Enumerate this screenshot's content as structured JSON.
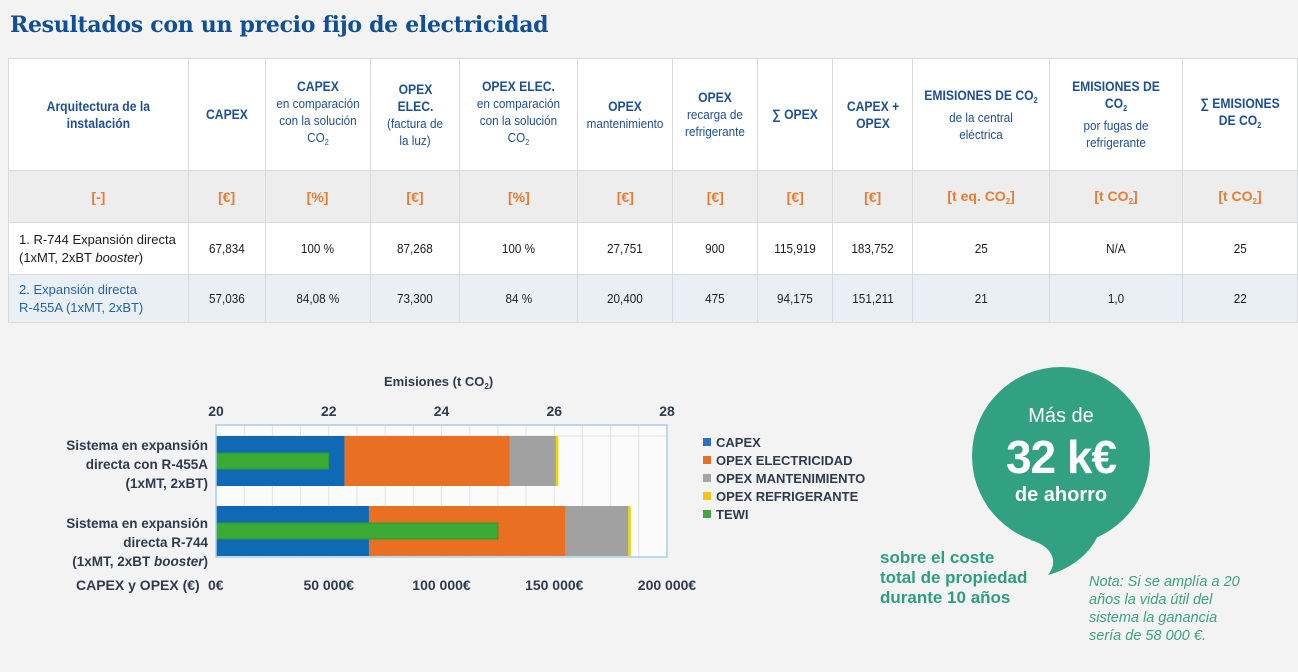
{
  "title": "Resultados con un precio fijo de electricidad",
  "table": {
    "headers": [
      {
        "main": "Arquitectura de la instalación",
        "sub": ""
      },
      {
        "main": "CAPEX",
        "sub": ""
      },
      {
        "main": "CAPEX",
        "sub": "en comparación con la solución",
        "sub2": "CO",
        "sub2_index": "2"
      },
      {
        "main": "OPEX ELEC.",
        "sub": "(factura de la luz)"
      },
      {
        "main": "OPEX ELEC.",
        "sub": "en comparación con la solución",
        "sub2": "CO",
        "sub2_index": "2"
      },
      {
        "main": "OPEX",
        "sub": "mantenimiento"
      },
      {
        "main": "OPEX",
        "sub": "recarga de refrigerante"
      },
      {
        "main": "∑ OPEX",
        "sub": ""
      },
      {
        "main": "CAPEX + OPEX",
        "sub": ""
      },
      {
        "main": "EMISIONES DE CO",
        "main_index": "2",
        "sub": "de la central eléctrica"
      },
      {
        "main": "EMISIONES DE CO",
        "main_index": "2",
        "sub": "por fugas de refrigerante"
      },
      {
        "main": "∑ EMISIONES DE CO",
        "main_index": "2",
        "sub": ""
      }
    ],
    "units": [
      "[-]",
      "[€]",
      "[%]",
      "[€]",
      "[%]",
      "[€]",
      "[€]",
      "[€]",
      "[€]",
      "[t eq. CO",
      "[t CO",
      "[t CO"
    ],
    "units_suffix": [
      "",
      "",
      "",
      "",
      "",
      "",
      "",
      "",
      "",
      "]",
      "]",
      "]"
    ],
    "units_index": [
      "",
      "",
      "",
      "",
      "",
      "",
      "",
      "",
      "",
      "2",
      "2",
      "2"
    ],
    "rows": [
      {
        "arch_line1": "1. R-744 Expansión directa",
        "arch_line2_a": "(1xMT, 2xBT ",
        "arch_line2_italic": "booster",
        "arch_line2_b": ")",
        "values": [
          "67,834",
          "100 %",
          "87,268",
          "100 %",
          "27,751",
          "900",
          "115,919",
          "183,752",
          "25",
          "N/A",
          "25"
        ]
      },
      {
        "arch_line1": "2. Expansión directa",
        "arch_line2_a": "R-455A (1xMT, 2xBT)",
        "arch_line2_italic": "",
        "arch_line2_b": "",
        "values": [
          "57,036",
          "84,08 %",
          "73,300",
          "84 %",
          "20,400",
          "475",
          "94,175",
          "151,211",
          "21",
          "1,0",
          "22"
        ]
      }
    ]
  },
  "chart_data": {
    "type": "bar",
    "orientation": "horizontal-stacked",
    "title": "Emisiones (t CO₂)",
    "title_text": "Emisiones (t CO",
    "title_index": "2",
    "title_close": ")",
    "categories": [
      {
        "lines": [
          "Sistema en expansión",
          "directa con R-455A",
          "(1xMT, 2xBT)"
        ],
        "italic_word": ""
      },
      {
        "lines": [
          "Sistema en expansión",
          "directa R-744",
          "(1xMT, 2xBT booster)"
        ],
        "italic_word": "booster"
      }
    ],
    "series": [
      {
        "name": "CAPEX",
        "color": "#0f69b4",
        "axis": "bottom",
        "values": [
          57036,
          67834
        ]
      },
      {
        "name": "OPEX ELECTRICIDAD",
        "color": "#e96f23",
        "axis": "bottom",
        "values": [
          73300,
          87268
        ]
      },
      {
        "name": "OPEX MANTENIMIENTO",
        "color": "#a1a1a1",
        "axis": "bottom",
        "values": [
          20400,
          27751
        ]
      },
      {
        "name": "OPEX REFRIGERANTE",
        "color": "#f2d500",
        "axis": "bottom",
        "values": [
          475,
          900
        ]
      },
      {
        "name": "TEWI",
        "color": "#3aaa35",
        "axis": "top",
        "values": [
          22,
          25
        ]
      }
    ],
    "legend_colors": [
      "#2f6fbf",
      "#e46f2a",
      "#a5a5a5",
      "#f5c215",
      "#43a843"
    ],
    "top_axis": {
      "label": "Emisiones (t CO₂)",
      "min": 20,
      "max": 28,
      "ticks": [
        "20",
        "22",
        "24",
        "26",
        "28"
      ]
    },
    "bottom_axis": {
      "label": "CAPEX y OPEX (€)",
      "min": 0,
      "max": 200000,
      "ticks": [
        "0€",
        "50 000€",
        "100 000€",
        "150 000€",
        "200 000€"
      ]
    },
    "grid": true,
    "legend_position": "right"
  },
  "bubble": {
    "line1": "Más de",
    "line2": "32 k€",
    "line3": "de ahorro",
    "color": "#31a083"
  },
  "caption": [
    "sobre el coste",
    "total de propiedad",
    "durante 10 años"
  ],
  "note": [
    "Nota: Si se amplía a 20",
    "años la vida útil del",
    "sistema la ganancia",
    "sería de 58 000 €."
  ]
}
